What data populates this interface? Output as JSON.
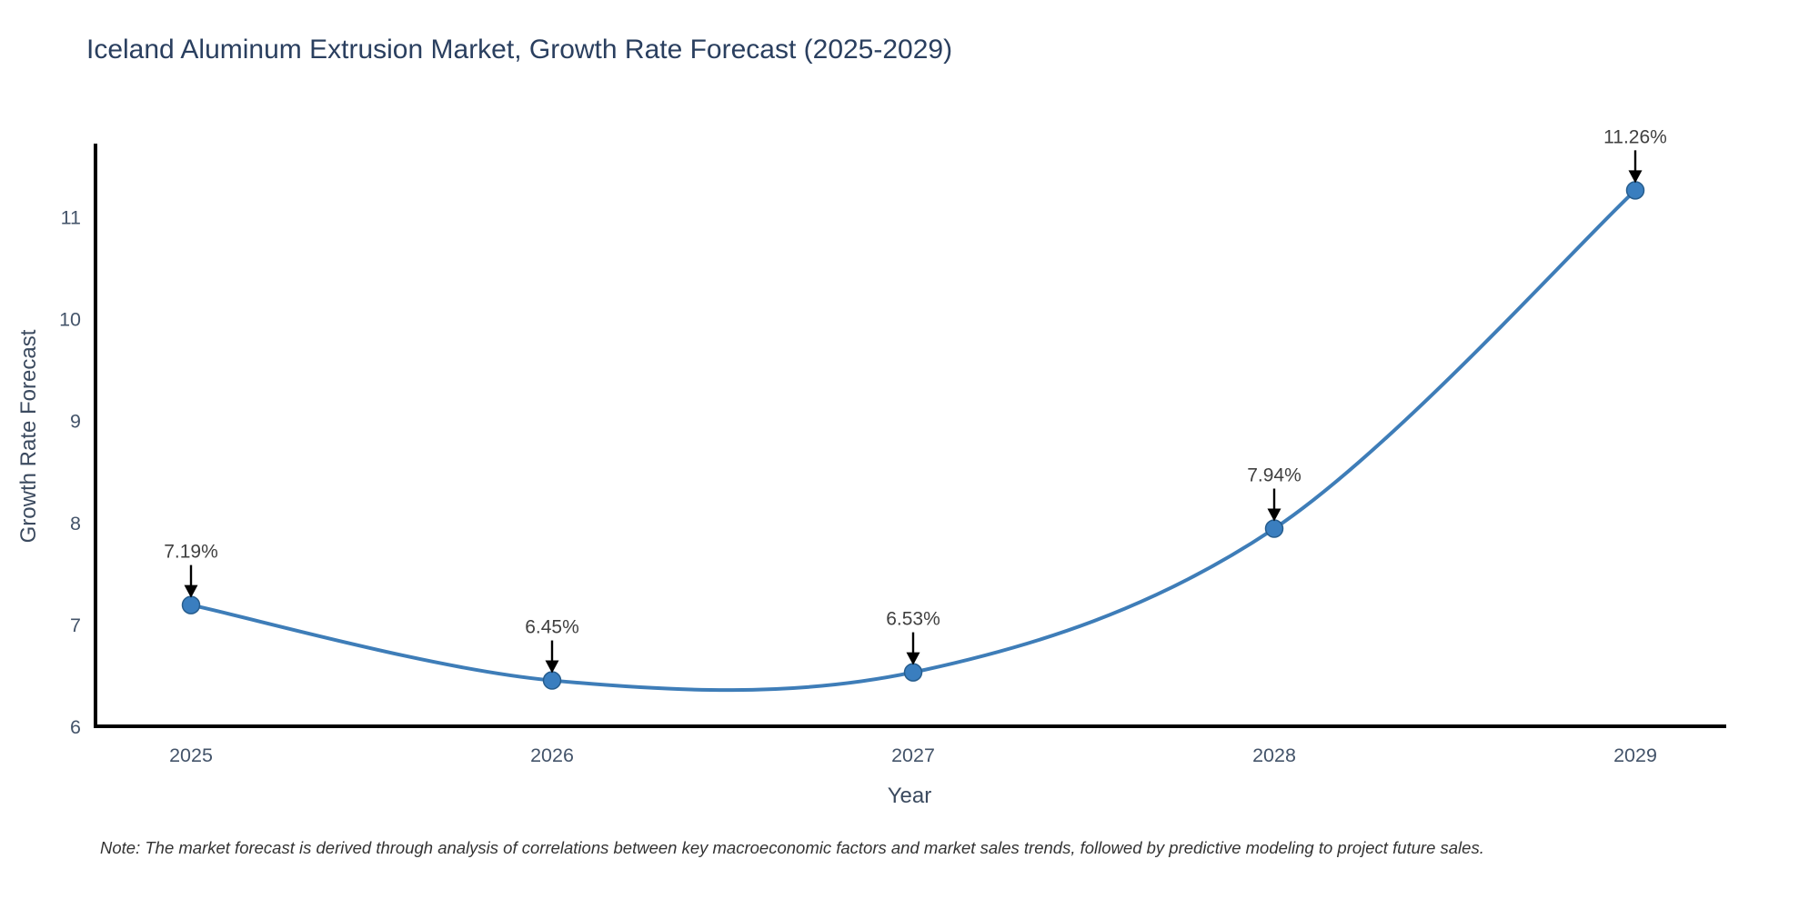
{
  "chart_data": {
    "type": "line",
    "title": "Iceland Aluminum Extrusion Market, Growth Rate Forecast (2025-2029)",
    "xlabel": "Year",
    "ylabel": "Growth Rate Forecast",
    "categories": [
      "2025",
      "2026",
      "2027",
      "2028",
      "2029"
    ],
    "series": [
      {
        "name": "Growth Rate Forecast",
        "values": [
          7.19,
          6.45,
          6.53,
          7.94,
          11.26
        ],
        "point_labels": [
          "7.19%",
          "6.45%",
          "6.53%",
          "7.94%",
          "11.26%"
        ]
      }
    ],
    "yticks": [
      6,
      7,
      8,
      9,
      10,
      11
    ],
    "ylim": [
      6,
      11.7
    ],
    "line_shape": "spline",
    "grid": false,
    "legend_position": "none",
    "note": "Note: The market forecast is derived through analysis of correlations between key macroeconomic factors and market sales trends, followed by predictive modeling to project future sales.",
    "colors": {
      "line": "#3e7db8",
      "marker_fill": "#3a7ebf",
      "marker_edge": "#275d8d",
      "annotation_arrow": "#000000",
      "annotation_text": "#404040",
      "axis_line": "#000000",
      "tick_text": "#44546a",
      "title_text": "#2a3f5f"
    }
  }
}
